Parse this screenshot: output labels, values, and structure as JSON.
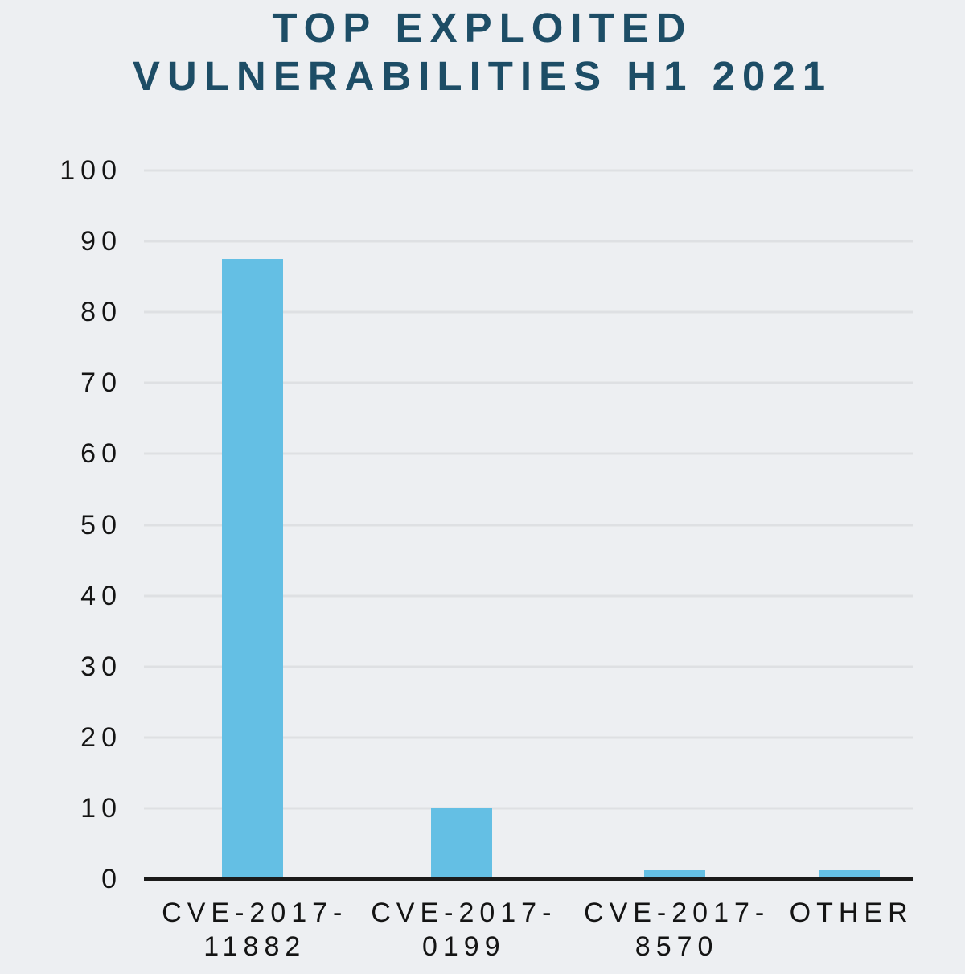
{
  "chart_data": {
    "type": "bar",
    "title": "TOP EXPLOITED VULNERABILITIES H1 2021",
    "title_lines": [
      "TOP EXPLOITED",
      "VULNERABILITIES H1 2021"
    ],
    "categories": [
      "CVE-2017-11882",
      "CVE-2017-0199",
      "CVE-2017-8570",
      "OTHER"
    ],
    "category_display_lines": [
      [
        "CVE-2017-",
        "11882"
      ],
      [
        "CVE-2017-",
        "0199"
      ],
      [
        "CVE-2017-",
        "8570"
      ],
      [
        "OTHER"
      ]
    ],
    "values": [
      87.5,
      10,
      1.3,
      1.3
    ],
    "xlabel": "",
    "ylabel": "",
    "ylim": [
      0,
      100
    ],
    "yticks": [
      0,
      10,
      20,
      30,
      40,
      50,
      60,
      70,
      80,
      90,
      100
    ],
    "grid": true,
    "legend_position": "none",
    "layout": {
      "bar_centers_pct": [
        14.1,
        41.3,
        69.0,
        91.7
      ],
      "bar_width_pct": 7.95
    },
    "colors": {
      "bar": "#64BFE4",
      "background": "#EDEFF2",
      "title": "#1D4D66",
      "gridline": "#DEE0E3",
      "axis_line": "#1B1B1B",
      "tick_label": "#141414"
    }
  }
}
